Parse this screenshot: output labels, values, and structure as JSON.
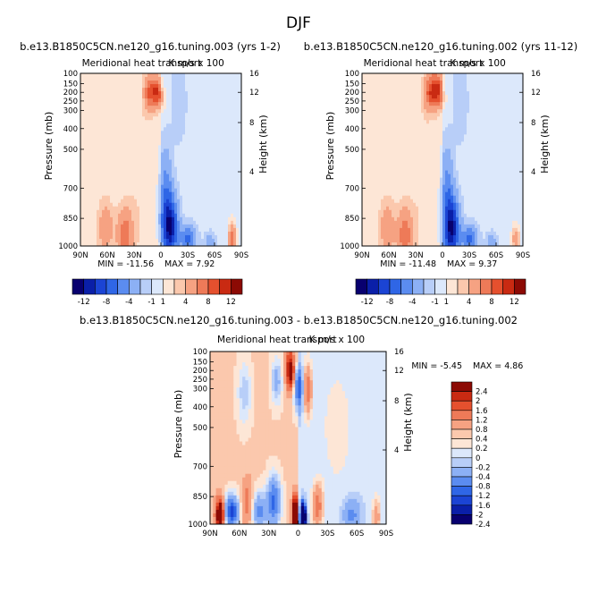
{
  "page_title": "DJF",
  "panel_titles": [
    "b.e13.B1850C5CN.ne120_g16.tuning.003 (yrs 1-2)",
    "b.e13.B1850C5CN.ne120_g16.tuning.002 (yrs 11-12)",
    "b.e13.B1850C5CN.ne120_g16.tuning.003 - b.e13.B1850C5CN.ne120_g16.tuning.002"
  ],
  "colors": {
    "levels_main": [
      "#08006f",
      "#0a1fa8",
      "#1b44d4",
      "#2f66e6",
      "#5b8cf0",
      "#8cb0f5",
      "#b8cef8",
      "#dce8fb",
      "#fde6d6",
      "#fbc8ad",
      "#f6a282",
      "#ee7a58",
      "#e5502e",
      "#c92a12",
      "#8c0a04"
    ],
    "levels_diff": [
      "#08006f",
      "#0a1fa8",
      "#1b44d4",
      "#2f66e6",
      "#5b8cf0",
      "#8cb0f5",
      "#b8cef8",
      "#dce8fb",
      "#fde6d6",
      "#fbc8ad",
      "#f6a282",
      "#ee7a58",
      "#e5502e",
      "#c92a12",
      "#8c0a04"
    ]
  },
  "chart_data": [
    {
      "type": "heatmap",
      "title": "b.e13.B1850C5CN.ne120_g16.tuning.003 (yrs 1-2)",
      "subtitle": "Meridional heat transport",
      "units": "K m/s x 100",
      "xlabel": "",
      "ylabel": "Pressure (mb)",
      "ylabel_right": "Height (km)",
      "x_ticks": [
        "90N",
        "60N",
        "30N",
        "0",
        "30S",
        "60S",
        "90S"
      ],
      "y_ticks": [
        100,
        150,
        200,
        250,
        300,
        400,
        500,
        700,
        850,
        1000
      ],
      "y_ticks_right": [
        16,
        12,
        8,
        4
      ],
      "ylim": [
        100,
        1000
      ],
      "min_label": "MIN = -11.56",
      "max_label": "MAX = 7.92",
      "min": -11.56,
      "max": 7.92,
      "contour_levels": [
        -12,
        -10,
        -8,
        -6,
        -4,
        -2,
        -1,
        0,
        1,
        2,
        4,
        6,
        8,
        10,
        12
      ],
      "colorbar_labels": [
        "-12",
        "-8",
        "-4",
        "-1",
        "1",
        "4",
        "8",
        "12"
      ],
      "blobs": [
        {
          "lat": 5,
          "p": 200,
          "value": 7.9,
          "slat": 6,
          "sp": 55
        },
        {
          "lat": 14,
          "p": 210,
          "value": 3,
          "slat": 4,
          "sp": 70
        },
        {
          "lat": -2,
          "p": 170,
          "value": -2,
          "slat": 3,
          "sp": 40
        },
        {
          "lat": -20,
          "p": 250,
          "value": -1.2,
          "slat": 6,
          "sp": 150
        },
        {
          "lat": -10,
          "p": 900,
          "value": -11.5,
          "slat": 6,
          "sp": 110
        },
        {
          "lat": -5,
          "p": 700,
          "value": -4,
          "slat": 5,
          "sp": 150
        },
        {
          "lat": -30,
          "p": 960,
          "value": -6,
          "slat": 6,
          "sp": 50
        },
        {
          "lat": -55,
          "p": 990,
          "value": -3,
          "slat": 4,
          "sp": 40
        },
        {
          "lat": -80,
          "p": 960,
          "value": 6,
          "slat": 3,
          "sp": 60
        },
        {
          "lat": 40,
          "p": 940,
          "value": 5,
          "slat": 6,
          "sp": 90
        },
        {
          "lat": 62,
          "p": 900,
          "value": 3,
          "slat": 6,
          "sp": 90
        },
        {
          "lat": 20,
          "p": 700,
          "value": 0.6,
          "slat": 15,
          "sp": 300
        }
      ],
      "background_value": 0.4,
      "south_background_value": -0.6
    },
    {
      "type": "heatmap",
      "title": "b.e13.B1850C5CN.ne120_g16.tuning.002 (yrs 11-12)",
      "subtitle": "Meridional heat transport",
      "units": "K m/s x 100",
      "xlabel": "",
      "ylabel": "Pressure (mb)",
      "ylabel_right": "Height (km)",
      "x_ticks": [
        "90N",
        "60N",
        "30N",
        "0",
        "30S",
        "60S",
        "90S"
      ],
      "y_ticks": [
        100,
        150,
        200,
        250,
        300,
        400,
        500,
        700,
        850,
        1000
      ],
      "y_ticks_right": [
        16,
        12,
        8,
        4
      ],
      "ylim": [
        100,
        1000
      ],
      "min_label": "MIN = -11.48",
      "max_label": "MAX = 9.37",
      "min": -11.48,
      "max": 9.37,
      "contour_levels": [
        -12,
        -10,
        -8,
        -6,
        -4,
        -2,
        -1,
        0,
        1,
        2,
        4,
        6,
        8,
        10,
        12
      ],
      "colorbar_labels": [
        "-12",
        "-8",
        "-4",
        "-1",
        "1",
        "4",
        "8",
        "12"
      ],
      "blobs": [
        {
          "lat": 7,
          "p": 190,
          "value": 9.3,
          "slat": 6,
          "sp": 60
        },
        {
          "lat": 16,
          "p": 210,
          "value": 3,
          "slat": 4,
          "sp": 70
        },
        {
          "lat": -2,
          "p": 170,
          "value": -2,
          "slat": 3,
          "sp": 40
        },
        {
          "lat": -20,
          "p": 250,
          "value": -1.2,
          "slat": 6,
          "sp": 150
        },
        {
          "lat": -10,
          "p": 910,
          "value": -11.4,
          "slat": 6,
          "sp": 110
        },
        {
          "lat": -5,
          "p": 700,
          "value": -4,
          "slat": 5,
          "sp": 150
        },
        {
          "lat": -30,
          "p": 960,
          "value": -6,
          "slat": 6,
          "sp": 50
        },
        {
          "lat": -55,
          "p": 990,
          "value": -3,
          "slat": 4,
          "sp": 40
        },
        {
          "lat": -82,
          "p": 960,
          "value": 4,
          "slat": 3,
          "sp": 50
        },
        {
          "lat": 42,
          "p": 940,
          "value": 5,
          "slat": 6,
          "sp": 90
        },
        {
          "lat": 62,
          "p": 900,
          "value": 3,
          "slat": 6,
          "sp": 90
        },
        {
          "lat": 20,
          "p": 700,
          "value": 0.6,
          "slat": 15,
          "sp": 300
        }
      ],
      "background_value": 0.4,
      "south_background_value": -0.6
    },
    {
      "type": "heatmap",
      "title": "b.e13.B1850C5CN.ne120_g16.tuning.003 - b.e13.B1850C5CN.ne120_g16.tuning.002",
      "subtitle": "Meridional heat transport",
      "units": "K m/s x 100",
      "xlabel": "",
      "ylabel": "Pressure (mb)",
      "ylabel_right": "Height (km)",
      "x_ticks": [
        "90N",
        "60N",
        "30N",
        "0",
        "30S",
        "60S",
        "90S"
      ],
      "y_ticks": [
        100,
        150,
        200,
        250,
        300,
        400,
        500,
        700,
        850,
        1000
      ],
      "y_ticks_right": [
        16,
        12,
        8,
        4
      ],
      "ylim": [
        100,
        1000
      ],
      "min_label": "MIN = -5.45",
      "max_label": "MAX = 4.86",
      "min": -5.45,
      "max": 4.86,
      "contour_levels": [
        -2.4,
        -2,
        -1.6,
        -1.2,
        -0.8,
        -0.4,
        -0.2,
        0,
        0.2,
        0.4,
        0.8,
        1.2,
        1.6,
        2,
        2.4
      ],
      "colorbar_labels": [
        "2.4",
        "2",
        "1.6",
        "1.2",
        "0.8",
        "0.4",
        "0.2",
        "0",
        "-0.2",
        "-0.4",
        "-0.8",
        "-1.2",
        "-1.6",
        "-2",
        "-2.4"
      ],
      "blobs": [
        {
          "lat": 8,
          "p": 200,
          "value": 2.4,
          "slat": 3,
          "sp": 70
        },
        {
          "lat": 0,
          "p": 300,
          "value": -1.6,
          "slat": 3,
          "sp": 80
        },
        {
          "lat": -10,
          "p": 300,
          "value": 1.2,
          "slat": 3,
          "sp": 100
        },
        {
          "lat": 22,
          "p": 260,
          "value": -0.8,
          "slat": 4,
          "sp": 90
        },
        {
          "lat": 55,
          "p": 320,
          "value": -0.6,
          "slat": 5,
          "sp": 120
        },
        {
          "lat": 80,
          "p": 950,
          "value": 3,
          "slat": 3,
          "sp": 60
        },
        {
          "lat": 68,
          "p": 930,
          "value": -2,
          "slat": 5,
          "sp": 60
        },
        {
          "lat": 52,
          "p": 880,
          "value": 0.8,
          "slat": 4,
          "sp": 80
        },
        {
          "lat": 40,
          "p": 930,
          "value": -1.2,
          "slat": 5,
          "sp": 70
        },
        {
          "lat": 25,
          "p": 880,
          "value": -1.6,
          "slat": 5,
          "sp": 90
        },
        {
          "lat": 3,
          "p": 950,
          "value": 4.8,
          "slat": 2,
          "sp": 60
        },
        {
          "lat": -5,
          "p": 960,
          "value": -5.4,
          "slat": 2,
          "sp": 50
        },
        {
          "lat": -20,
          "p": 900,
          "value": 1.2,
          "slat": 4,
          "sp": 80
        },
        {
          "lat": -55,
          "p": 950,
          "value": -0.8,
          "slat": 6,
          "sp": 60
        },
        {
          "lat": -80,
          "p": 960,
          "value": 0.8,
          "slat": 3,
          "sp": 70
        },
        {
          "lat": -40,
          "p": 500,
          "value": 0.3,
          "slat": 10,
          "sp": 200
        }
      ],
      "background_value": 0.25,
      "south_background_value": -0.15
    }
  ]
}
